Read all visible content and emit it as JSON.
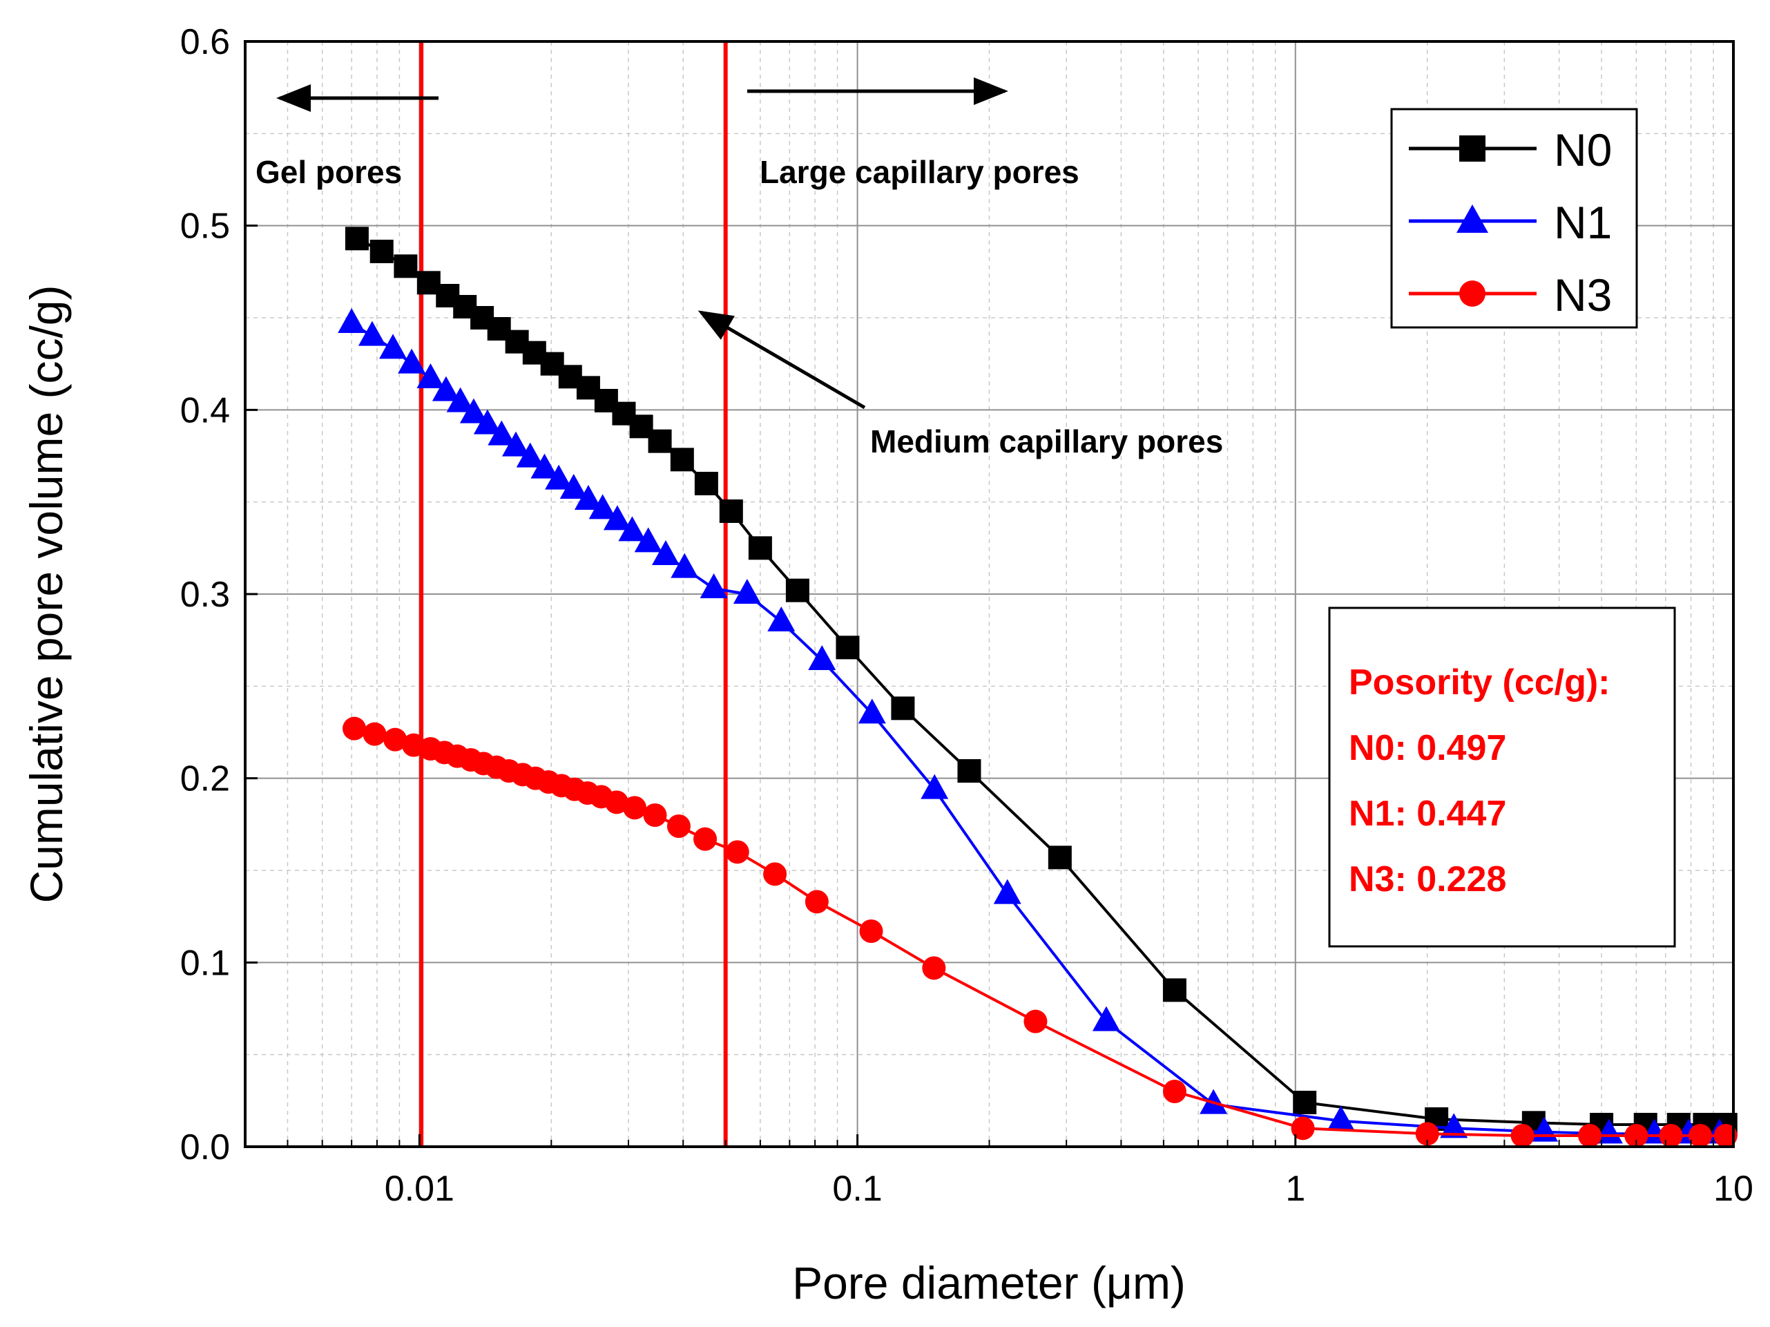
{
  "chart_data": {
    "type": "line",
    "xscale": "log",
    "xlabel": "Pore diameter (μm)",
    "ylabel": "Cumulative pore volume (cc/g)",
    "xlim": [
      0.004,
      10
    ],
    "ylim": [
      0,
      0.6
    ],
    "grid": true,
    "x_ticks": [
      {
        "value": 0.01,
        "label": "0.01"
      },
      {
        "value": 0.1,
        "label": "0.1"
      },
      {
        "value": 1,
        "label": "1"
      },
      {
        "value": 10,
        "label": "10"
      }
    ],
    "y_ticks": [
      {
        "value": 0.0,
        "label": "0.0"
      },
      {
        "value": 0.1,
        "label": "0.1"
      },
      {
        "value": 0.2,
        "label": "0.2"
      },
      {
        "value": 0.3,
        "label": "0.3"
      },
      {
        "value": 0.4,
        "label": "0.4"
      },
      {
        "value": 0.5,
        "label": "0.5"
      },
      {
        "value": 0.6,
        "label": "0.6"
      }
    ],
    "series": [
      {
        "name": "N0",
        "color": "#000000",
        "marker": "square",
        "points": [
          [
            0.0072,
            0.493
          ],
          [
            0.0082,
            0.486
          ],
          [
            0.0093,
            0.478
          ],
          [
            0.0105,
            0.469
          ],
          [
            0.0116,
            0.462
          ],
          [
            0.0127,
            0.456
          ],
          [
            0.0139,
            0.45
          ],
          [
            0.0152,
            0.444
          ],
          [
            0.0167,
            0.437
          ],
          [
            0.0183,
            0.431
          ],
          [
            0.0201,
            0.425
          ],
          [
            0.0221,
            0.418
          ],
          [
            0.0243,
            0.412
          ],
          [
            0.0267,
            0.405
          ],
          [
            0.0293,
            0.398
          ],
          [
            0.0321,
            0.391
          ],
          [
            0.0354,
            0.383
          ],
          [
            0.0398,
            0.373
          ],
          [
            0.0452,
            0.36
          ],
          [
            0.0515,
            0.345
          ],
          [
            0.06,
            0.325
          ],
          [
            0.073,
            0.302
          ],
          [
            0.095,
            0.271
          ],
          [
            0.127,
            0.238
          ],
          [
            0.18,
            0.204
          ],
          [
            0.29,
            0.157
          ],
          [
            0.53,
            0.085
          ],
          [
            1.05,
            0.024
          ],
          [
            2.1,
            0.015
          ],
          [
            3.5,
            0.013
          ],
          [
            5.0,
            0.012
          ],
          [
            6.3,
            0.012
          ],
          [
            7.5,
            0.012
          ],
          [
            8.6,
            0.012
          ],
          [
            9.6,
            0.012
          ]
        ]
      },
      {
        "name": "N1",
        "color": "#0000ff",
        "marker": "triangle",
        "points": [
          [
            0.007,
            0.447
          ],
          [
            0.0078,
            0.44
          ],
          [
            0.0087,
            0.433
          ],
          [
            0.0096,
            0.425
          ],
          [
            0.0106,
            0.417
          ],
          [
            0.0115,
            0.41
          ],
          [
            0.0124,
            0.404
          ],
          [
            0.0133,
            0.398
          ],
          [
            0.0143,
            0.392
          ],
          [
            0.0154,
            0.386
          ],
          [
            0.0166,
            0.38
          ],
          [
            0.0179,
            0.374
          ],
          [
            0.0193,
            0.368
          ],
          [
            0.0208,
            0.362
          ],
          [
            0.0225,
            0.357
          ],
          [
            0.0243,
            0.351
          ],
          [
            0.0262,
            0.346
          ],
          [
            0.0283,
            0.34
          ],
          [
            0.0306,
            0.334
          ],
          [
            0.0333,
            0.328
          ],
          [
            0.0365,
            0.321
          ],
          [
            0.0403,
            0.314
          ],
          [
            0.047,
            0.303
          ],
          [
            0.056,
            0.3
          ],
          [
            0.067,
            0.285
          ],
          [
            0.083,
            0.264
          ],
          [
            0.108,
            0.235
          ],
          [
            0.15,
            0.194
          ],
          [
            0.22,
            0.137
          ],
          [
            0.37,
            0.068
          ],
          [
            0.65,
            0.023
          ],
          [
            1.27,
            0.014
          ],
          [
            2.3,
            0.01
          ],
          [
            3.7,
            0.008
          ],
          [
            5.2,
            0.007
          ],
          [
            6.6,
            0.007
          ],
          [
            7.9,
            0.007
          ],
          [
            9.3,
            0.007
          ]
        ]
      },
      {
        "name": "N3",
        "color": "#ff0000",
        "marker": "circle",
        "points": [
          [
            0.0071,
            0.227
          ],
          [
            0.0079,
            0.224
          ],
          [
            0.0088,
            0.221
          ],
          [
            0.0097,
            0.218
          ],
          [
            0.0106,
            0.216
          ],
          [
            0.0114,
            0.214
          ],
          [
            0.0122,
            0.212
          ],
          [
            0.0131,
            0.21
          ],
          [
            0.014,
            0.208
          ],
          [
            0.015,
            0.206
          ],
          [
            0.016,
            0.204
          ],
          [
            0.0172,
            0.202
          ],
          [
            0.0184,
            0.2
          ],
          [
            0.0197,
            0.198
          ],
          [
            0.0211,
            0.196
          ],
          [
            0.0226,
            0.194
          ],
          [
            0.0242,
            0.192
          ],
          [
            0.026,
            0.19
          ],
          [
            0.0282,
            0.187
          ],
          [
            0.031,
            0.184
          ],
          [
            0.0345,
            0.18
          ],
          [
            0.0391,
            0.174
          ],
          [
            0.0449,
            0.167
          ],
          [
            0.0532,
            0.16
          ],
          [
            0.0648,
            0.148
          ],
          [
            0.0808,
            0.133
          ],
          [
            0.1075,
            0.117
          ],
          [
            0.1495,
            0.097
          ],
          [
            0.255,
            0.068
          ],
          [
            0.53,
            0.03
          ],
          [
            1.04,
            0.01
          ],
          [
            2.0,
            0.007
          ],
          [
            3.3,
            0.006
          ],
          [
            4.7,
            0.006
          ],
          [
            6.0,
            0.006
          ],
          [
            7.2,
            0.006
          ],
          [
            8.4,
            0.006
          ],
          [
            9.6,
            0.006
          ]
        ]
      }
    ],
    "vlines": [
      {
        "x": 0.0101,
        "color": "#ff0000"
      },
      {
        "x": 0.05,
        "color": "#ff0000"
      }
    ],
    "annotations": {
      "gel": "Gel pores",
      "large": "Large capillary pores",
      "medium": "Medium capillary pores"
    },
    "porosity_box": {
      "title": "Posority (cc/g):",
      "lines": [
        "N0: 0.497",
        "N1: 0.447",
        "N3: 0.228"
      ],
      "color": "#ff0000"
    },
    "legend_position": "top-right"
  }
}
